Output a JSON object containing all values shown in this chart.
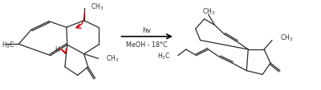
{
  "figsize": [
    4.0,
    1.14
  ],
  "dpi": 100,
  "bg": "#ffffff",
  "bc": "#2a2a2a",
  "rc": "#cc0000",
  "lw": 0.9,
  "arrow_hv": "hv",
  "arrow_cond": "MeOH - 18°C"
}
